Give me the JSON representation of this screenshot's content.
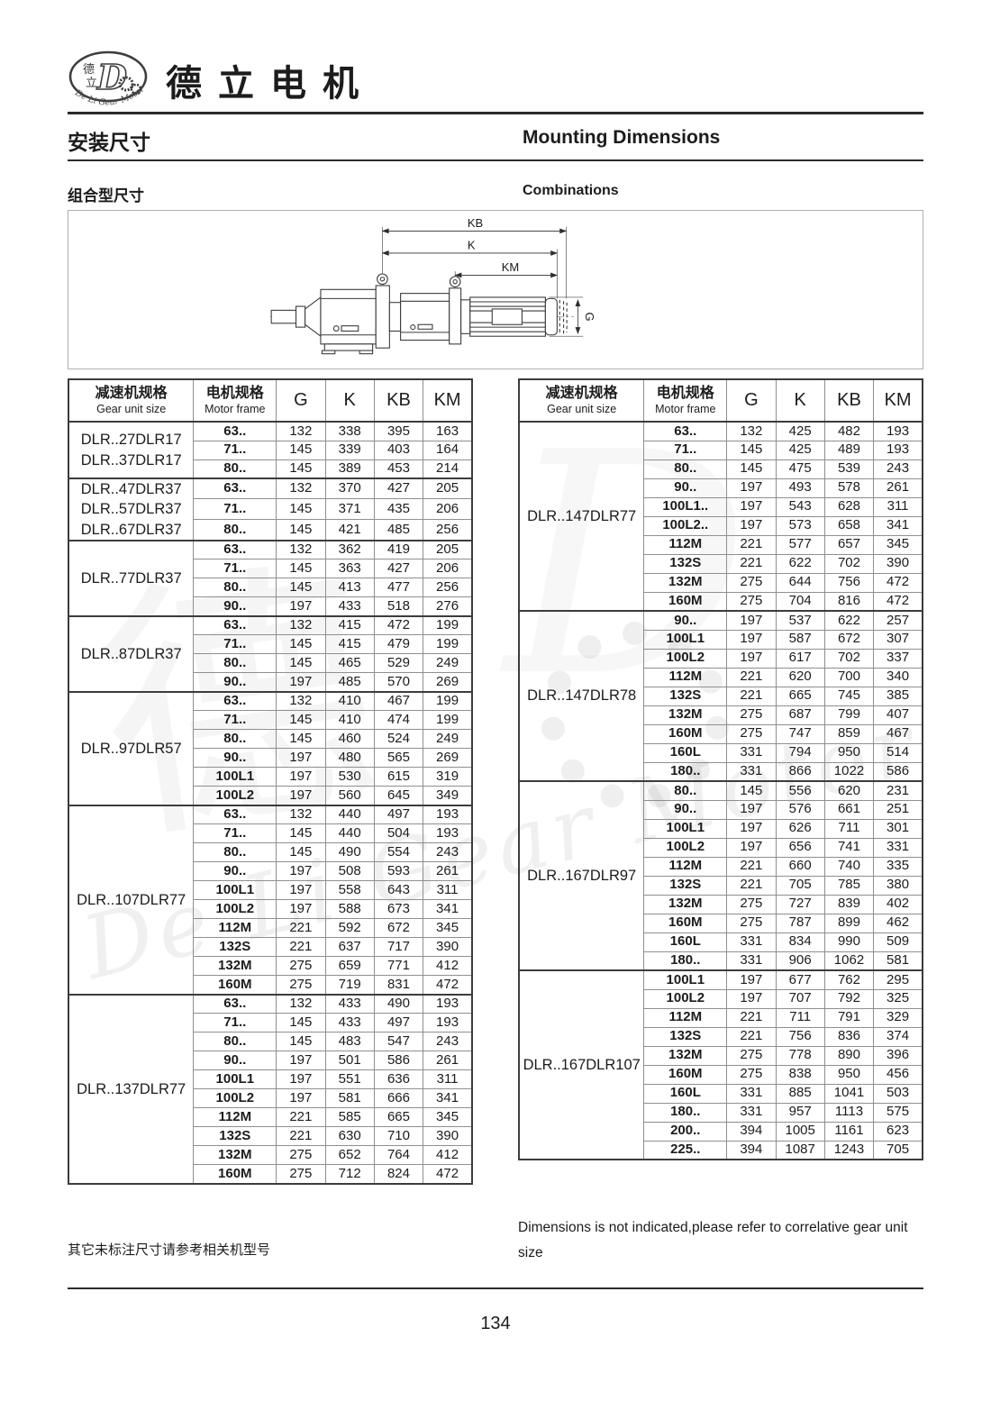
{
  "page": {
    "brand_title": "德立电机",
    "section_title_zh": "安装尺寸",
    "section_title_en": "Mounting Dimensions",
    "subsection_zh": "组合型尺寸",
    "subsection_en": "Combinations",
    "footnote_zh": "其它未标注尺寸请参考相关机型号",
    "footnote_en": "Dimensions is not indicated,please refer to correlative gear unit size",
    "page_number": "134",
    "watermark": "De Li Gear Motor",
    "watermark_char": "德",
    "watermark_letter": "D"
  },
  "logo": {
    "cn_top": "德",
    "cn_bottom": "立",
    "letter": "D",
    "ring_text": "De Li Gear Motor"
  },
  "diagram": {
    "labels": {
      "kb": "KB",
      "k": "K",
      "km": "KM",
      "g": "G"
    }
  },
  "table_header": {
    "gear_zh": "减速机规格",
    "gear_en": "Gear unit size",
    "motor_zh": "电机规格",
    "motor_en": "Motor frame",
    "cols": [
      "G",
      "K",
      "KB",
      "KM"
    ]
  },
  "left_table": {
    "groups": [
      {
        "label": [
          "DLR..27DLR17",
          "DLR..37DLR17"
        ],
        "rows": [
          {
            "frame": "63..",
            "values": [
              132,
              338,
              395,
              163
            ]
          },
          {
            "frame": "71..",
            "values": [
              145,
              339,
              403,
              164
            ]
          },
          {
            "frame": "80..",
            "values": [
              145,
              389,
              453,
              214
            ]
          }
        ]
      },
      {
        "label": [
          "DLR..47DLR37",
          "DLR..57DLR37",
          "DLR..67DLR37"
        ],
        "rows": [
          {
            "frame": "63..",
            "values": [
              132,
              370,
              427,
              205
            ]
          },
          {
            "frame": "71..",
            "values": [
              145,
              371,
              435,
              206
            ]
          },
          {
            "frame": "80..",
            "values": [
              145,
              421,
              485,
              256
            ]
          }
        ]
      },
      {
        "label": [
          "DLR..77DLR37"
        ],
        "rows": [
          {
            "frame": "63..",
            "values": [
              132,
              362,
              419,
              205
            ]
          },
          {
            "frame": "71..",
            "values": [
              145,
              363,
              427,
              206
            ]
          },
          {
            "frame": "80..",
            "values": [
              145,
              413,
              477,
              256
            ]
          },
          {
            "frame": "90..",
            "values": [
              197,
              433,
              518,
              276
            ]
          }
        ]
      },
      {
        "label": [
          "DLR..87DLR37"
        ],
        "rows": [
          {
            "frame": "63..",
            "values": [
              132,
              415,
              472,
              199
            ]
          },
          {
            "frame": "71..",
            "values": [
              145,
              415,
              479,
              199
            ]
          },
          {
            "frame": "80..",
            "values": [
              145,
              465,
              529,
              249
            ]
          },
          {
            "frame": "90..",
            "values": [
              197,
              485,
              570,
              269
            ]
          }
        ]
      },
      {
        "label": [
          "DLR..97DLR57"
        ],
        "rows": [
          {
            "frame": "63..",
            "values": [
              132,
              410,
              467,
              199
            ]
          },
          {
            "frame": "71..",
            "values": [
              145,
              410,
              474,
              199
            ]
          },
          {
            "frame": "80..",
            "values": [
              145,
              460,
              524,
              249
            ]
          },
          {
            "frame": "90..",
            "values": [
              197,
              480,
              565,
              269
            ]
          },
          {
            "frame": "100L1",
            "values": [
              197,
              530,
              615,
              319
            ]
          },
          {
            "frame": "100L2",
            "values": [
              197,
              560,
              645,
              349
            ]
          }
        ]
      },
      {
        "label": [
          "DLR..107DLR77"
        ],
        "rows": [
          {
            "frame": "63..",
            "values": [
              132,
              440,
              497,
              193
            ]
          },
          {
            "frame": "71..",
            "values": [
              145,
              440,
              504,
              193
            ]
          },
          {
            "frame": "80..",
            "values": [
              145,
              490,
              554,
              243
            ]
          },
          {
            "frame": "90..",
            "values": [
              197,
              508,
              593,
              261
            ]
          },
          {
            "frame": "100L1",
            "values": [
              197,
              558,
              643,
              311
            ]
          },
          {
            "frame": "100L2",
            "values": [
              197,
              588,
              673,
              341
            ]
          },
          {
            "frame": "112M",
            "values": [
              221,
              592,
              672,
              345
            ]
          },
          {
            "frame": "132S",
            "values": [
              221,
              637,
              717,
              390
            ]
          },
          {
            "frame": "132M",
            "values": [
              275,
              659,
              771,
              412
            ]
          },
          {
            "frame": "160M",
            "values": [
              275,
              719,
              831,
              472
            ]
          }
        ]
      },
      {
        "label": [
          "DLR..137DLR77"
        ],
        "rows": [
          {
            "frame": "63..",
            "values": [
              132,
              433,
              490,
              193
            ]
          },
          {
            "frame": "71..",
            "values": [
              145,
              433,
              497,
              193
            ]
          },
          {
            "frame": "80..",
            "values": [
              145,
              483,
              547,
              243
            ]
          },
          {
            "frame": "90..",
            "values": [
              197,
              501,
              586,
              261
            ]
          },
          {
            "frame": "100L1",
            "values": [
              197,
              551,
              636,
              311
            ]
          },
          {
            "frame": "100L2",
            "values": [
              197,
              581,
              666,
              341
            ]
          },
          {
            "frame": "112M",
            "values": [
              221,
              585,
              665,
              345
            ]
          },
          {
            "frame": "132S",
            "values": [
              221,
              630,
              710,
              390
            ]
          },
          {
            "frame": "132M",
            "values": [
              275,
              652,
              764,
              412
            ]
          },
          {
            "frame": "160M",
            "values": [
              275,
              712,
              824,
              472
            ]
          }
        ]
      }
    ]
  },
  "right_table": {
    "groups": [
      {
        "label": [
          "DLR..147DLR77"
        ],
        "rows": [
          {
            "frame": "63..",
            "values": [
              132,
              425,
              482,
              193
            ]
          },
          {
            "frame": "71..",
            "values": [
              145,
              425,
              489,
              193
            ]
          },
          {
            "frame": "80..",
            "values": [
              145,
              475,
              539,
              243
            ]
          },
          {
            "frame": "90..",
            "values": [
              197,
              493,
              578,
              261
            ]
          },
          {
            "frame": "100L1..",
            "values": [
              197,
              543,
              628,
              311
            ]
          },
          {
            "frame": "100L2..",
            "values": [
              197,
              573,
              658,
              341
            ]
          },
          {
            "frame": "112M",
            "values": [
              221,
              577,
              657,
              345
            ]
          },
          {
            "frame": "132S",
            "values": [
              221,
              622,
              702,
              390
            ]
          },
          {
            "frame": "132M",
            "values": [
              275,
              644,
              756,
              472
            ]
          },
          {
            "frame": "160M",
            "values": [
              275,
              704,
              816,
              472
            ]
          }
        ]
      },
      {
        "label": [
          "DLR..147DLR78"
        ],
        "rows": [
          {
            "frame": "90..",
            "values": [
              197,
              537,
              622,
              257
            ]
          },
          {
            "frame": "100L1",
            "values": [
              197,
              587,
              672,
              307
            ]
          },
          {
            "frame": "100L2",
            "values": [
              197,
              617,
              702,
              337
            ]
          },
          {
            "frame": "112M",
            "values": [
              221,
              620,
              700,
              340
            ]
          },
          {
            "frame": "132S",
            "values": [
              221,
              665,
              745,
              385
            ]
          },
          {
            "frame": "132M",
            "values": [
              275,
              687,
              799,
              407
            ]
          },
          {
            "frame": "160M",
            "values": [
              275,
              747,
              859,
              467
            ]
          },
          {
            "frame": "160L",
            "values": [
              331,
              794,
              950,
              514
            ]
          },
          {
            "frame": "180..",
            "values": [
              331,
              866,
              1022,
              586
            ]
          }
        ]
      },
      {
        "label": [
          "DLR..167DLR97"
        ],
        "rows": [
          {
            "frame": "80..",
            "values": [
              145,
              556,
              620,
              231
            ]
          },
          {
            "frame": "90..",
            "values": [
              197,
              576,
              661,
              251
            ]
          },
          {
            "frame": "100L1",
            "values": [
              197,
              626,
              711,
              301
            ]
          },
          {
            "frame": "100L2",
            "values": [
              197,
              656,
              741,
              331
            ]
          },
          {
            "frame": "112M",
            "values": [
              221,
              660,
              740,
              335
            ]
          },
          {
            "frame": "132S",
            "values": [
              221,
              705,
              785,
              380
            ]
          },
          {
            "frame": "132M",
            "values": [
              275,
              727,
              839,
              402
            ]
          },
          {
            "frame": "160M",
            "values": [
              275,
              787,
              899,
              462
            ]
          },
          {
            "frame": "160L",
            "values": [
              331,
              834,
              990,
              509
            ]
          },
          {
            "frame": "180..",
            "values": [
              331,
              906,
              1062,
              581
            ]
          }
        ]
      },
      {
        "label": [
          "DLR..167DLR107"
        ],
        "rows": [
          {
            "frame": "100L1",
            "values": [
              197,
              677,
              762,
              295
            ]
          },
          {
            "frame": "100L2",
            "values": [
              197,
              707,
              792,
              325
            ]
          },
          {
            "frame": "112M",
            "values": [
              221,
              711,
              791,
              329
            ]
          },
          {
            "frame": "132S",
            "values": [
              221,
              756,
              836,
              374
            ]
          },
          {
            "frame": "132M",
            "values": [
              275,
              778,
              890,
              396
            ]
          },
          {
            "frame": "160M",
            "values": [
              275,
              838,
              950,
              456
            ]
          },
          {
            "frame": "160L",
            "values": [
              331,
              885,
              1041,
              503
            ]
          },
          {
            "frame": "180..",
            "values": [
              331,
              957,
              1113,
              575
            ]
          },
          {
            "frame": "200..",
            "values": [
              394,
              1005,
              1161,
              623
            ]
          },
          {
            "frame": "225..",
            "values": [
              394,
              1087,
              1243,
              705
            ]
          }
        ]
      }
    ]
  }
}
